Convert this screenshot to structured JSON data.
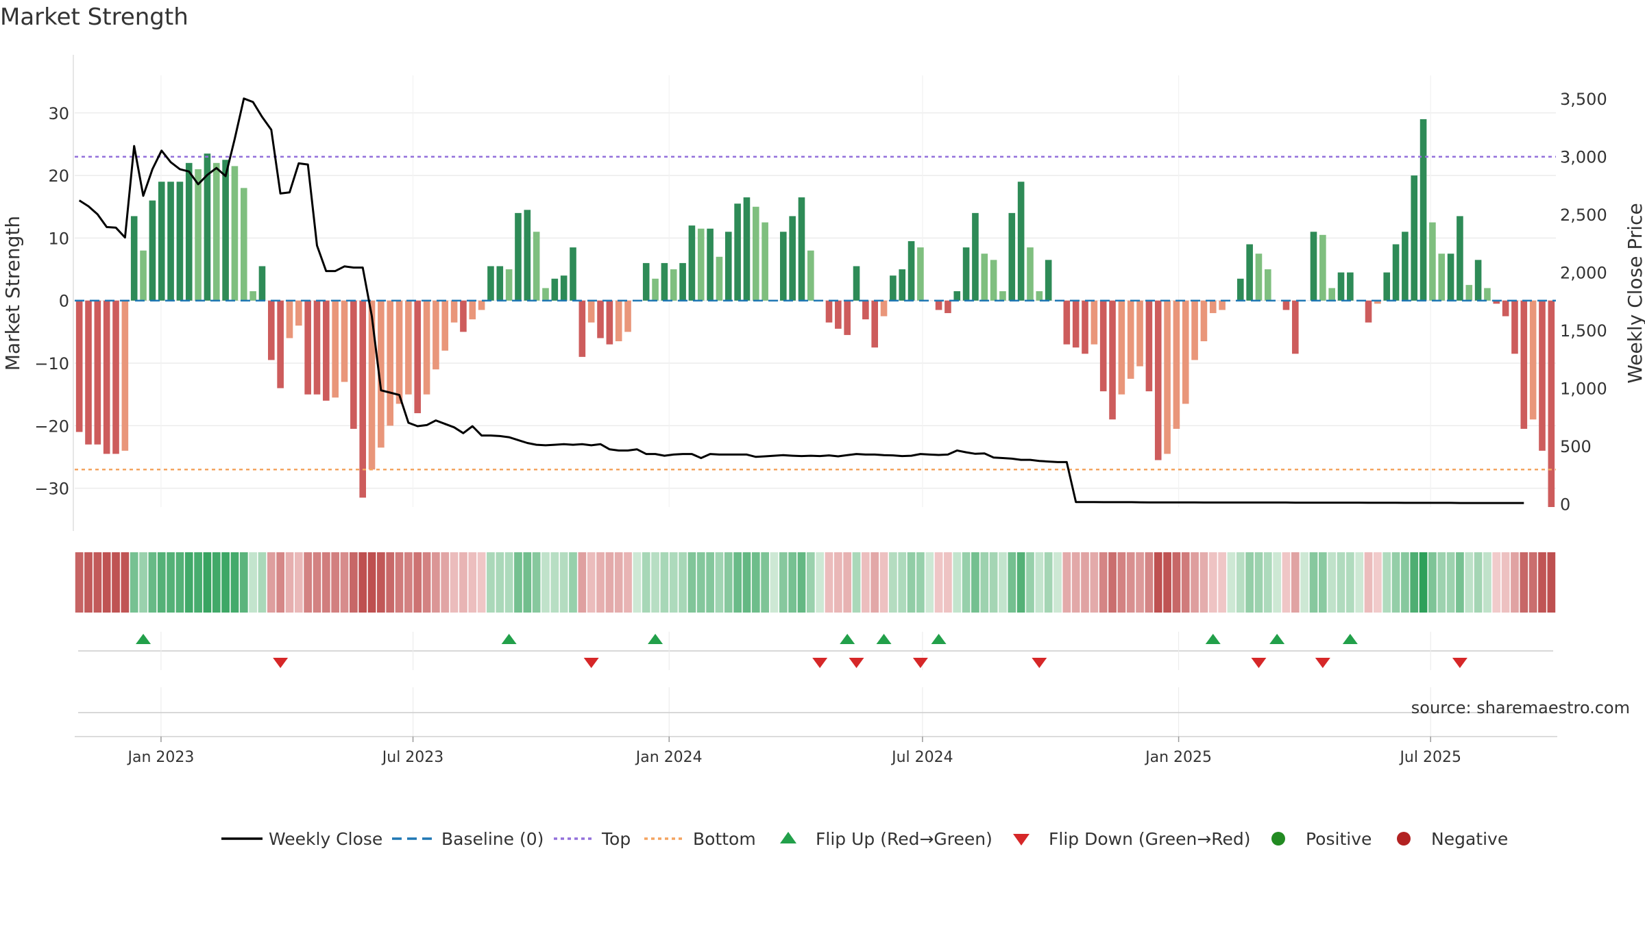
{
  "chart_data": {
    "type": "bar",
    "title": "Market Strength",
    "ylabel_left": "Market Strength",
    "ylabel_right": "Weekly Close Price",
    "source": "source: sharemaestro.com",
    "x_tick_labels": [
      "Jan 2023",
      "Jul 2023",
      "Jan 2024",
      "Jul 2024",
      "Jan 2025",
      "Jul 2025"
    ],
    "x_tick_dates": [
      "2023-01-01",
      "2023-07-01",
      "2024-01-01",
      "2024-07-01",
      "2025-01-01",
      "2025-07-01"
    ],
    "x_range": [
      "2022-10-31",
      "2025-09-29"
    ],
    "left_axis": {
      "ylim": [
        -33,
        36
      ],
      "ticks": [
        30,
        20,
        10,
        0,
        -10,
        -20,
        -30
      ],
      "tick_labels": [
        "30",
        "20",
        "10",
        "0",
        "−10",
        "−20",
        "−30"
      ]
    },
    "right_axis": {
      "ylim": [
        -28,
        3700
      ],
      "ticks": [
        3500,
        3000,
        2500,
        2000,
        1500,
        1000,
        500,
        0
      ],
      "tick_labels": [
        "3,500",
        "3,000",
        "2,500",
        "2,000",
        "1,500",
        "1,000",
        "500",
        "0"
      ]
    },
    "top_level": 23,
    "bottom_level": -27,
    "strength": [
      -21,
      -23,
      -23,
      -24.5,
      -24.5,
      -24,
      13.5,
      8,
      16,
      19,
      19,
      19,
      22,
      21,
      23.5,
      22,
      22.5,
      21.5,
      18,
      1.5,
      5.5,
      -9.5,
      -14,
      -6,
      -4,
      -15,
      -15,
      -16,
      -15.5,
      -13,
      -20.5,
      -31.5,
      -27,
      -23.5,
      -20,
      -16.5,
      -15,
      -18,
      -15,
      -11,
      -8,
      -3.5,
      -5,
      -3,
      -1.5,
      5.5,
      5.5,
      5,
      14,
      14.5,
      11,
      2,
      3.5,
      4,
      8.5,
      -9,
      -3.5,
      -6,
      -7,
      -6.5,
      -5,
      0,
      6,
      3.5,
      6,
      5,
      6,
      12,
      11.5,
      11.5,
      7,
      11,
      15.5,
      16.5,
      15,
      12.5,
      0,
      11,
      13.5,
      16.5,
      8,
      0,
      -3.5,
      -4.5,
      -5.5,
      5.5,
      -3,
      -7.5,
      -2.5,
      4,
      5,
      9.5,
      8.5,
      0,
      -1.5,
      -2,
      1.5,
      8.5,
      14,
      7.5,
      6.5,
      1.5,
      14,
      19,
      8.5,
      1.5,
      6.5,
      0,
      -7,
      -7.5,
      -8.5,
      -7,
      -14.5,
      -19,
      -15,
      -12.5,
      -10.5,
      -14.5,
      -25.5,
      -24.5,
      -20.5,
      -16.5,
      -9.5,
      -6.5,
      -2,
      -1.5,
      0,
      3.5,
      9,
      7.5,
      5,
      0,
      -1.5,
      -8.5,
      0,
      11,
      10.5,
      2,
      4.5,
      4.5,
      0,
      -3.5,
      -0.5,
      4.5,
      9,
      11,
      20,
      29,
      12.5,
      7.5,
      7.5,
      13.5,
      2.5,
      6.5,
      2,
      -0.5,
      -2.5,
      -8.5,
      -20.5,
      -19,
      -24,
      -33
    ],
    "weekly_close": [
      2620,
      2570,
      2500,
      2390,
      2385,
      2300,
      3090,
      2660,
      2890,
      3050,
      2950,
      2890,
      2870,
      2760,
      2840,
      2900,
      2830,
      3150,
      3500,
      3470,
      3340,
      3230,
      2680,
      2690,
      2940,
      2930,
      2230,
      2010,
      2010,
      2050,
      2040,
      2040,
      1620,
      980,
      960,
      940,
      700,
      670,
      680,
      720,
      690,
      660,
      610,
      670,
      590,
      590,
      585,
      575,
      550,
      525,
      510,
      505,
      510,
      515,
      510,
      515,
      505,
      515,
      470,
      460,
      460,
      470,
      430,
      430,
      415,
      425,
      430,
      430,
      395,
      430,
      425,
      425,
      425,
      425,
      405,
      410,
      415,
      420,
      415,
      412,
      415,
      412,
      418,
      410,
      420,
      430,
      425,
      425,
      420,
      418,
      412,
      415,
      430,
      425,
      422,
      425,
      460,
      445,
      432,
      435,
      400,
      395,
      390,
      380,
      380,
      370,
      365,
      360,
      360,
      15,
      15,
      15,
      14,
      14,
      14,
      14,
      13,
      12,
      12,
      12,
      12,
      12,
      12,
      11,
      11,
      11,
      11,
      11,
      11,
      11,
      11,
      11,
      11,
      10,
      10,
      10,
      10,
      10,
      10,
      10,
      10,
      9,
      9,
      9,
      9,
      8,
      8,
      8,
      8,
      8,
      8,
      7,
      7,
      7,
      7,
      7,
      7,
      7,
      7
    ],
    "flip_up_weeks": [
      7,
      47,
      63,
      84,
      88,
      94,
      124,
      131,
      139
    ],
    "flip_down_weeks": [
      22,
      56,
      81,
      85,
      92,
      105,
      129,
      136,
      151
    ],
    "legend": [
      "Weekly Close",
      "Baseline (0)",
      "Top",
      "Bottom",
      "Flip Up (Red→Green)",
      "Flip Down (Green→Red)",
      "Positive",
      "Negative"
    ],
    "legend_placement": "bottom",
    "grid": true,
    "colors": {
      "pos_strong": "#2e8b57",
      "pos_light": "#7fbf7f",
      "neg_strong": "#cd5c5c",
      "neg_light": "#e9967a",
      "close_line": "#000000",
      "baseline": "#1f77b4",
      "top": "#9370db",
      "bottom": "#f4a460",
      "flip_up": "#22a04a",
      "flip_down": "#d62728",
      "positive_dot": "#228b22",
      "negative_dot": "#b22222"
    }
  }
}
